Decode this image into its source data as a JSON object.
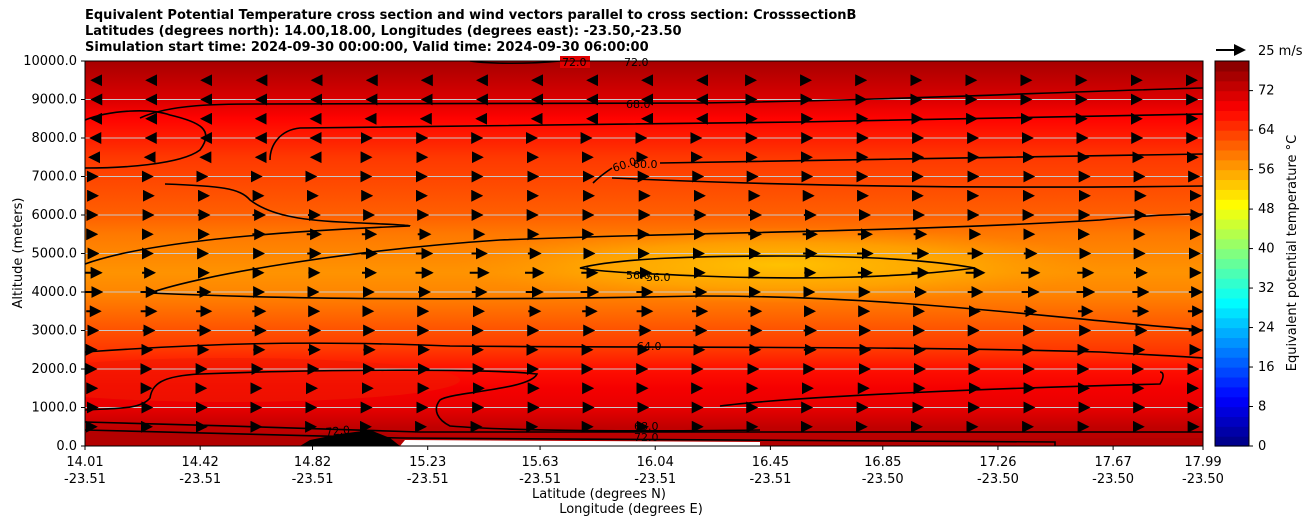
{
  "title_lines": [
    "Equivalent Potential Temperature cross section and wind vectors parallel to cross section: CrosssectionB",
    "Latitudes (degrees north): 14.00,18.00, Longitudes (degrees east): -23.50,-23.50",
    "Simulation start time: 2024-09-30 00:00:00, Valid time: 2024-09-30 06:00:00"
  ],
  "chart_data": {
    "type": "contour_cross_section",
    "ylabel": "Altitude (meters)",
    "xlabel_lat": "Latitude (degrees N)",
    "xlabel_lon": "Longitude (degrees E)",
    "ylim": [
      0,
      10000
    ],
    "y_ticks": [
      "0.0",
      "1000.0",
      "2000.0",
      "3000.0",
      "4000.0",
      "5000.0",
      "6000.0",
      "7000.0",
      "8000.0",
      "9000.0",
      "10000.0"
    ],
    "x_ticks": [
      {
        "lat": "14.01",
        "lon": "-23.51"
      },
      {
        "lat": "14.42",
        "lon": "-23.51"
      },
      {
        "lat": "14.82",
        "lon": "-23.51"
      },
      {
        "lat": "15.23",
        "lon": "-23.51"
      },
      {
        "lat": "15.63",
        "lon": "-23.51"
      },
      {
        "lat": "16.04",
        "lon": "-23.51"
      },
      {
        "lat": "16.45",
        "lon": "-23.51"
      },
      {
        "lat": "16.85",
        "lon": "-23.50"
      },
      {
        "lat": "17.26",
        "lon": "-23.50"
      },
      {
        "lat": "17.67",
        "lon": "-23.50"
      },
      {
        "lat": "17.99",
        "lon": "-23.50"
      }
    ],
    "xlim": [
      14.01,
      17.99
    ],
    "colorbar": {
      "label": "Equivalent potential temperature °C",
      "ticks": [
        "0",
        "8",
        "16",
        "24",
        "32",
        "40",
        "48",
        "56",
        "64",
        "72"
      ],
      "range": [
        0,
        78
      ],
      "colormap": "jet"
    },
    "wind_key": {
      "label": "25 m/s"
    },
    "contour_labels": [
      "72.0",
      "72.0",
      "68.0",
      "60.0",
      "60.0",
      "56.0",
      "56.0",
      "64.0",
      "68.0",
      "72.0",
      "72.0"
    ],
    "theta_e_profile": {
      "altitudes_m": [
        0,
        500,
        1000,
        1500,
        2000,
        2500,
        3000,
        3500,
        4000,
        4500,
        5000,
        5500,
        6000,
        6500,
        7000,
        7500,
        8000,
        8500,
        9000,
        9500,
        10000
      ],
      "values_C": [
        74,
        73,
        70,
        69,
        67,
        64,
        62,
        60,
        58,
        57,
        58,
        59,
        61,
        62,
        63,
        64,
        66,
        68,
        71,
        73,
        75
      ]
    },
    "wind_speed_profile_ms": {
      "altitudes_m": [
        0,
        1000,
        2000,
        3000,
        4000,
        4500,
        5000,
        6000,
        7000,
        8000,
        9000,
        10000
      ],
      "values": [
        3,
        6,
        7,
        10,
        13,
        14,
        12,
        9,
        6,
        4,
        2,
        1
      ]
    }
  }
}
